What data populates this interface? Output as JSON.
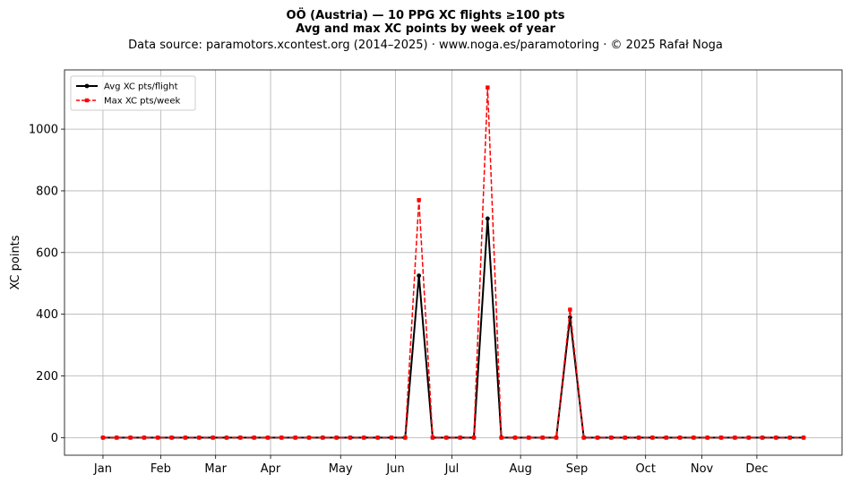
{
  "title": {
    "line1": "OÖ (Austria)  —  10 PPG XC flights ≥100 pts",
    "line2": "Avg and max XC points by week of year",
    "line3": "Data source: paramotors.xcontest.org (2014–2025)  ·  www.noga.es/paramotoring  ·  © 2025 Rafał Noga"
  },
  "chart_data": {
    "type": "line",
    "x": [
      1,
      2,
      3,
      4,
      5,
      6,
      7,
      8,
      9,
      10,
      11,
      12,
      13,
      14,
      15,
      16,
      17,
      18,
      19,
      20,
      21,
      22,
      23,
      24,
      25,
      26,
      27,
      28,
      29,
      30,
      31,
      32,
      33,
      34,
      35,
      36,
      37,
      38,
      39,
      40,
      41,
      42,
      43,
      44,
      45,
      46,
      47,
      48,
      49,
      50,
      51,
      52
    ],
    "series": [
      {
        "name": "Avg XC pts/flight",
        "color": "#000000",
        "style": "solid-circle",
        "values": [
          0,
          0,
          0,
          0,
          0,
          0,
          0,
          0,
          0,
          0,
          0,
          0,
          0,
          0,
          0,
          0,
          0,
          0,
          0,
          0,
          0,
          0,
          0,
          525,
          0,
          0,
          0,
          0,
          710,
          0,
          0,
          0,
          0,
          0,
          390,
          0,
          0,
          0,
          0,
          0,
          0,
          0,
          0,
          0,
          0,
          0,
          0,
          0,
          0,
          0,
          0,
          0
        ]
      },
      {
        "name": "Max XC pts/week",
        "color": "#ff0000",
        "style": "dashed-square",
        "values": [
          0,
          0,
          0,
          0,
          0,
          0,
          0,
          0,
          0,
          0,
          0,
          0,
          0,
          0,
          0,
          0,
          0,
          0,
          0,
          0,
          0,
          0,
          0,
          770,
          0,
          0,
          0,
          0,
          1135,
          0,
          0,
          0,
          0,
          0,
          415,
          0,
          0,
          0,
          0,
          0,
          0,
          0,
          0,
          0,
          0,
          0,
          0,
          0,
          0,
          0,
          0,
          0
        ]
      }
    ],
    "xticks": [
      {
        "label": "Jan",
        "week": 1
      },
      {
        "label": "Feb",
        "week": 5.2
      },
      {
        "label": "Mar",
        "week": 9.2
      },
      {
        "label": "Apr",
        "week": 13.2
      },
      {
        "label": "May",
        "week": 18.3
      },
      {
        "label": "Jun",
        "week": 22.3
      },
      {
        "label": "Jul",
        "week": 26.4
      },
      {
        "label": "Aug",
        "week": 31.4
      },
      {
        "label": "Sep",
        "week": 35.5
      },
      {
        "label": "Oct",
        "week": 40.5
      },
      {
        "label": "Nov",
        "week": 44.6
      },
      {
        "label": "Dec",
        "week": 48.6
      }
    ],
    "yticks": [
      0,
      200,
      400,
      600,
      800,
      1000
    ],
    "xlim": [
      -1.8,
      54.8
    ],
    "ylim": [
      -57,
      1192
    ],
    "xlabel": "",
    "ylabel": "XC points",
    "grid": true,
    "legend": "top-left"
  }
}
